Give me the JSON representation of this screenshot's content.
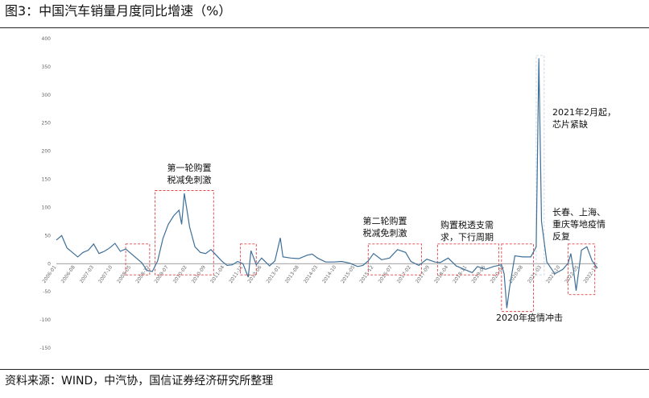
{
  "figure_title": "图3：中国汽车销量月度同比增速（%）",
  "source": "资料来源：WIND，中汽协，国信证券经济研究所整理",
  "colors": {
    "line": "#3e6f98",
    "box": "#e0454a",
    "zero": "#7f7f7f",
    "peak_box": "#c8d7e4"
  },
  "chart_data": {
    "type": "line",
    "title": "",
    "xlabel": "",
    "ylabel": "",
    "ylim": [
      -150,
      400
    ],
    "yticks": [
      -150,
      -100,
      -50,
      0,
      50,
      100,
      150,
      200,
      250,
      300,
      350,
      400
    ],
    "xlim": [
      "2006-01",
      "2022-12"
    ],
    "xticks": [
      "2006-01",
      "2006-08",
      "2007-03",
      "2007-10",
      "2008-05",
      "2008-12",
      "2009-07",
      "2010-02",
      "2010-09",
      "2011-04",
      "2011-11",
      "2012-06",
      "2013-01",
      "2013-08",
      "2014-03",
      "2014-10",
      "2015-05",
      "2015-12",
      "2016-07",
      "2017-02",
      "2017-09",
      "2018-04",
      "2018-11",
      "2019-06",
      "2020-01",
      "2020-08",
      "2021-03",
      "2021-10",
      "2022-05",
      "2022-12"
    ],
    "grid": false,
    "series": [
      {
        "values": [
          [
            "2006-01",
            42
          ],
          [
            "2006-03",
            50
          ],
          [
            "2006-05",
            28
          ],
          [
            "2006-07",
            20
          ],
          [
            "2006-09",
            12
          ],
          [
            "2006-11",
            20
          ],
          [
            "2007-01",
            24
          ],
          [
            "2007-03",
            35
          ],
          [
            "2007-05",
            18
          ],
          [
            "2007-07",
            22
          ],
          [
            "2007-09",
            28
          ],
          [
            "2007-11",
            36
          ],
          [
            "2008-01",
            22
          ],
          [
            "2008-03",
            26
          ],
          [
            "2008-05",
            18
          ],
          [
            "2008-07",
            10
          ],
          [
            "2008-09",
            2
          ],
          [
            "2008-11",
            -12
          ],
          [
            "2009-01",
            -14
          ],
          [
            "2009-03",
            5
          ],
          [
            "2009-05",
            45
          ],
          [
            "2009-07",
            70
          ],
          [
            "2009-09",
            85
          ],
          [
            "2009-11",
            95
          ],
          [
            "2009-12",
            70
          ],
          [
            "2010-01",
            125
          ],
          [
            "2010-03",
            65
          ],
          [
            "2010-05",
            30
          ],
          [
            "2010-07",
            20
          ],
          [
            "2010-09",
            18
          ],
          [
            "2010-11",
            25
          ],
          [
            "2011-01",
            15
          ],
          [
            "2011-03",
            5
          ],
          [
            "2011-05",
            -3
          ],
          [
            "2011-07",
            -2
          ],
          [
            "2011-09",
            4
          ],
          [
            "2011-11",
            0
          ],
          [
            "2012-01",
            -24
          ],
          [
            "2012-02",
            23
          ],
          [
            "2012-04",
            -2
          ],
          [
            "2012-06",
            10
          ],
          [
            "2012-09",
            -4
          ],
          [
            "2012-11",
            5
          ],
          [
            "2013-01",
            46
          ],
          [
            "2013-02",
            12
          ],
          [
            "2013-05",
            10
          ],
          [
            "2013-08",
            9
          ],
          [
            "2013-11",
            15
          ],
          [
            "2014-01",
            17
          ],
          [
            "2014-03",
            10
          ],
          [
            "2014-06",
            3
          ],
          [
            "2014-09",
            3
          ],
          [
            "2014-12",
            4
          ],
          [
            "2015-03",
            1
          ],
          [
            "2015-06",
            -5
          ],
          [
            "2015-08",
            -3
          ],
          [
            "2015-10",
            5
          ],
          [
            "2015-12",
            18
          ],
          [
            "2016-03",
            7
          ],
          [
            "2016-06",
            10
          ],
          [
            "2016-09",
            25
          ],
          [
            "2016-12",
            20
          ],
          [
            "2017-02",
            4
          ],
          [
            "2017-05",
            -3
          ],
          [
            "2017-08",
            8
          ],
          [
            "2017-11",
            3
          ],
          [
            "2018-01",
            2
          ],
          [
            "2018-04",
            10
          ],
          [
            "2018-07",
            -4
          ],
          [
            "2018-10",
            -10
          ],
          [
            "2019-01",
            -16
          ],
          [
            "2019-03",
            -5
          ],
          [
            "2019-06",
            -10
          ],
          [
            "2019-09",
            -5
          ],
          [
            "2019-12",
            -2
          ],
          [
            "2020-01",
            -18
          ],
          [
            "2020-02",
            -79
          ],
          [
            "2020-03",
            -43
          ],
          [
            "2020-05",
            14
          ],
          [
            "2020-08",
            12
          ],
          [
            "2020-11",
            12
          ],
          [
            "2021-01",
            30
          ],
          [
            "2021-02",
            365
          ],
          [
            "2021-03",
            75
          ],
          [
            "2021-05",
            3
          ],
          [
            "2021-08",
            -18
          ],
          [
            "2021-11",
            -10
          ],
          [
            "2022-01",
            1
          ],
          [
            "2022-02",
            18
          ],
          [
            "2022-03",
            -11
          ],
          [
            "2022-04",
            -48
          ],
          [
            "2022-06",
            24
          ],
          [
            "2022-08",
            30
          ],
          [
            "2022-10",
            5
          ],
          [
            "2022-12",
            -8
          ]
        ]
      }
    ],
    "annotations": [
      {
        "text": [
          "第一轮购置",
          "税减免刺激"
        ],
        "box_x": [
          "2009-02",
          "2010-12"
        ],
        "box_y": [
          -20,
          130
        ]
      },
      {
        "text": [
          "第二轮购置",
          "税减免刺激"
        ],
        "box_x": [
          "2015-10",
          "2017-06"
        ],
        "box_y": [
          -20,
          35
        ]
      },
      {
        "text": [
          "购置税透支需",
          "求，下行周期"
        ],
        "box_x": [
          "2017-12",
          "2019-11"
        ],
        "box_y": [
          -20,
          35
        ]
      },
      {
        "text": [
          "2020年疫情冲击"
        ],
        "box_x": [
          "2019-12",
          "2020-12"
        ],
        "box_y": [
          -85,
          35
        ]
      },
      {
        "text": [
          "2021年2月起，",
          "芯片紧缺"
        ],
        "box_x": [
          "2021-01",
          "2021-04"
        ],
        "box_y": [
          -20,
          370
        ]
      },
      {
        "text": [
          "长春、上海、",
          "重庆等地疫情",
          "反复"
        ],
        "box_x": [
          "2022-01",
          "2022-11"
        ],
        "box_y": [
          -55,
          35
        ]
      }
    ],
    "small_boxes_x": [
      [
        "2008-03",
        "2008-12"
      ],
      [
        "2011-10",
        "2012-04"
      ]
    ]
  }
}
